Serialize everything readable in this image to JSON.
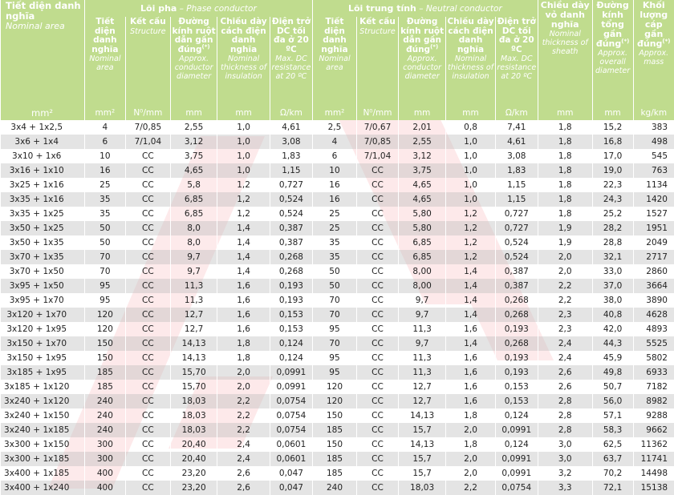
{
  "header": {
    "col_nominal_area": {
      "vi": "Tiết diện danh nghĩa",
      "en": "Nominal area"
    },
    "phase_group": {
      "vi": "Lõi pha",
      "sep": " – ",
      "en": "Phase conductor"
    },
    "neutral_group": {
      "vi": "Lõi trung tính",
      "sep": " – ",
      "en": "Neutral conductor"
    },
    "sub": {
      "area": {
        "vi": "Tiết diện danh nghĩa",
        "en": "Nominal area"
      },
      "structure": {
        "vi": "Kết cấu",
        "en": "Structure"
      },
      "diameter": {
        "vi": "Đường kính ruột dẫn gần đúng",
        "mark": "(*)",
        "en": "Approx. conductor diameter"
      },
      "insulation": {
        "vi": "Chiều dày cách điện danh nghĩa",
        "en": "Nominal thickness of insulation"
      },
      "resistance": {
        "vi": "Điện trở DC tối đa ở 20 ºC",
        "en": "Max. DC resistance at 20 ºC"
      }
    },
    "sheath": {
      "vi": "Chiều dày vỏ danh nghĩa",
      "en": "Nominal thickness of sheath"
    },
    "overall_diameter": {
      "vi": "Đường kính tổng gần đúng",
      "mark": "(*)",
      "en": "Approx. overall diameter"
    },
    "mass": {
      "vi": "Khối lượng cáp gần đúng",
      "mark": "(*)",
      "en": "Approx. mass"
    },
    "units": [
      "mm²",
      "mm²",
      "N⁰/mm",
      "mm",
      "mm",
      "Ω/km",
      "mm²",
      "N⁰/mm",
      "mm",
      "mm",
      "Ω/km",
      "mm",
      "mm",
      "kg/km"
    ]
  },
  "rows": [
    [
      "3x4 + 1x2,5",
      "4",
      "7/0,85",
      "2,55",
      "1,0",
      "4,61",
      "2,5",
      "7/0,67",
      "2,01",
      "0,8",
      "7,41",
      "1,8",
      "15,2",
      "383"
    ],
    [
      "3x6 + 1x4",
      "6",
      "7/1,04",
      "3,12",
      "1,0",
      "3,08",
      "4",
      "7/0,85",
      "2,55",
      "1,0",
      "4,61",
      "1,8",
      "16,8",
      "498"
    ],
    [
      "3x10 + 1x6",
      "10",
      "CC",
      "3,75",
      "1,0",
      "1,83",
      "6",
      "7/1,04",
      "3,12",
      "1,0",
      "3,08",
      "1,8",
      "17,0",
      "545"
    ],
    [
      "3x16 + 1x10",
      "16",
      "CC",
      "4,65",
      "1,0",
      "1,15",
      "10",
      "CC",
      "3,75",
      "1,0",
      "1,83",
      "1,8",
      "19,0",
      "763"
    ],
    [
      "3x25 + 1x16",
      "25",
      "CC",
      "5,8",
      "1,2",
      "0,727",
      "16",
      "CC",
      "4,65",
      "1,0",
      "1,15",
      "1,8",
      "22,3",
      "1134"
    ],
    [
      "3x35 + 1x16",
      "35",
      "CC",
      "6,85",
      "1,2",
      "0,524",
      "16",
      "CC",
      "4,65",
      "1,0",
      "1,15",
      "1,8",
      "24,3",
      "1420"
    ],
    [
      "3x35 + 1x25",
      "35",
      "CC",
      "6,85",
      "1,2",
      "0,524",
      "25",
      "CC",
      "5,80",
      "1,2",
      "0,727",
      "1,8",
      "25,2",
      "1527"
    ],
    [
      "3x50 + 1x25",
      "50",
      "CC",
      "8,0",
      "1,4",
      "0,387",
      "25",
      "CC",
      "5,80",
      "1,2",
      "0,727",
      "1,9",
      "28,2",
      "1951"
    ],
    [
      "3x50 + 1x35",
      "50",
      "CC",
      "8,0",
      "1,4",
      "0,387",
      "35",
      "CC",
      "6,85",
      "1,2",
      "0,524",
      "1,9",
      "28,8",
      "2049"
    ],
    [
      "3x70 + 1x35",
      "70",
      "CC",
      "9,7",
      "1,4",
      "0,268",
      "35",
      "CC",
      "6,85",
      "1,2",
      "0,524",
      "2,0",
      "32,1",
      "2717"
    ],
    [
      "3x70 + 1x50",
      "70",
      "CC",
      "9,7",
      "1,4",
      "0,268",
      "50",
      "CC",
      "8,00",
      "1,4",
      "0,387",
      "2,0",
      "33,0",
      "2860"
    ],
    [
      "3x95 + 1x50",
      "95",
      "CC",
      "11,3",
      "1,6",
      "0,193",
      "50",
      "CC",
      "8,00",
      "1,4",
      "0,387",
      "2,2",
      "37,0",
      "3664"
    ],
    [
      "3x95 + 1x70",
      "95",
      "CC",
      "11,3",
      "1,6",
      "0,193",
      "70",
      "CC",
      "9,7",
      "1,4",
      "0,268",
      "2,2",
      "38,0",
      "3890"
    ],
    [
      "3x120 + 1x70",
      "120",
      "CC",
      "12,7",
      "1,6",
      "0,153",
      "70",
      "CC",
      "9,7",
      "1,4",
      "0,268",
      "2,3",
      "40,8",
      "4628"
    ],
    [
      "3x120 + 1x95",
      "120",
      "CC",
      "12,7",
      "1,6",
      "0,153",
      "95",
      "CC",
      "11,3",
      "1,6",
      "0,193",
      "2,3",
      "42,0",
      "4893"
    ],
    [
      "3x150 + 1x70",
      "150",
      "CC",
      "14,13",
      "1,8",
      "0,124",
      "70",
      "CC",
      "9,7",
      "1,4",
      "0,268",
      "2,4",
      "44,3",
      "5525"
    ],
    [
      "3x150 + 1x95",
      "150",
      "CC",
      "14,13",
      "1,8",
      "0,124",
      "95",
      "CC",
      "11,3",
      "1,6",
      "0,193",
      "2,4",
      "45,9",
      "5802"
    ],
    [
      "3x185 + 1x95",
      "185",
      "CC",
      "15,70",
      "2,0",
      "0,0991",
      "95",
      "CC",
      "11,3",
      "1,6",
      "0,193",
      "2,6",
      "49,8",
      "6933"
    ],
    [
      "3x185 + 1x120",
      "185",
      "CC",
      "15,70",
      "2,0",
      "0,0991",
      "120",
      "CC",
      "12,7",
      "1,6",
      "0,153",
      "2,6",
      "50,7",
      "7182"
    ],
    [
      "3x240 + 1x120",
      "240",
      "CC",
      "18,03",
      "2,2",
      "0,0754",
      "120",
      "CC",
      "12,7",
      "1,6",
      "0,153",
      "2,8",
      "56,0",
      "8982"
    ],
    [
      "3x240 + 1x150",
      "240",
      "CC",
      "18,03",
      "2,2",
      "0,0754",
      "150",
      "CC",
      "14,13",
      "1,8",
      "0,124",
      "2,8",
      "57,1",
      "9288"
    ],
    [
      "3x240 + 1x185",
      "240",
      "CC",
      "18,03",
      "2,2",
      "0,0754",
      "185",
      "CC",
      "15,7",
      "2,0",
      "0,0991",
      "2,8",
      "58,3",
      "9662"
    ],
    [
      "3x300 + 1x150",
      "300",
      "CC",
      "20,40",
      "2,4",
      "0,0601",
      "150",
      "CC",
      "14,13",
      "1,8",
      "0,124",
      "3,0",
      "62,5",
      "11362"
    ],
    [
      "3x300 + 1x185",
      "300",
      "CC",
      "20,40",
      "2,4",
      "0,0601",
      "185",
      "CC",
      "15,7",
      "2,0",
      "0,0991",
      "3,0",
      "63,7",
      "11741"
    ],
    [
      "3x400 + 1x185",
      "400",
      "CC",
      "23,20",
      "2,6",
      "0,047",
      "185",
      "CC",
      "15,7",
      "2,0",
      "0,0991",
      "3,2",
      "70,2",
      "14498"
    ],
    [
      "3x400 + 1x240",
      "400",
      "CC",
      "23,20",
      "2,6",
      "0,047",
      "240",
      "CC",
      "18,03",
      "2,2",
      "0,0754",
      "3,3",
      "72,1",
      "15138"
    ]
  ],
  "colors": {
    "header_bg": "#c0dc8e",
    "header_text": "#ffffff",
    "row_alt": "#dadada",
    "watermark": "#e8141c"
  }
}
